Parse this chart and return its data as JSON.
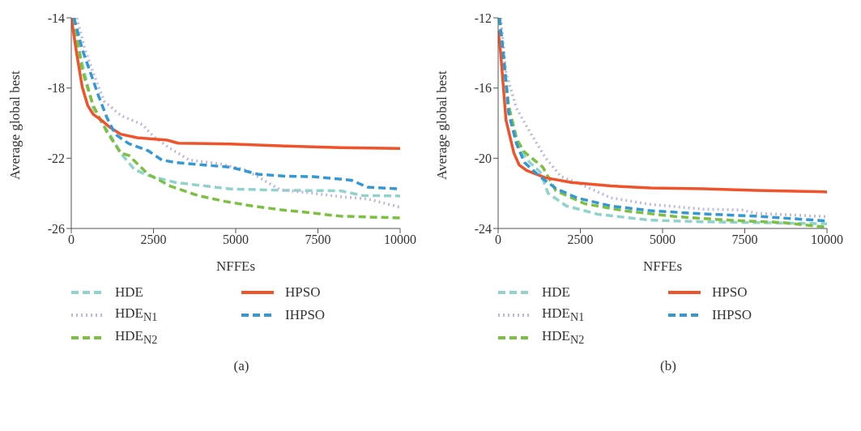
{
  "chart_data": [
    {
      "type": "line",
      "xlabel": "NFFEs",
      "ylabel": "Average global best",
      "xlim": [
        0,
        10000
      ],
      "xticks": [
        0,
        2500,
        5000,
        7500,
        10000
      ],
      "ylim": [
        -26,
        -14
      ],
      "yticks": [
        -26,
        -22,
        -18,
        -14
      ],
      "grid": false,
      "legend": "bottom",
      "marker": "none",
      "annotations": [
        "(a)"
      ],
      "series": [
        {
          "name": "HDE",
          "color": "#8fd3cc",
          "line_style": "dashed",
          "x": [
            0,
            334,
            668,
            918,
            1169,
            1503,
            1920,
            2337,
            3172,
            4841,
            6511,
            8180,
            8848,
            10000
          ],
          "values": [
            -14,
            -16.6,
            -19.15,
            -19.96,
            -20.63,
            -21.7,
            -22.64,
            -22.98,
            -23.38,
            -23.75,
            -23.83,
            -23.85,
            -24.12,
            -24.15
          ]
        },
        {
          "name": "HDE$_{N1}$",
          "color": "#c0b8dc",
          "line_style": "dotted",
          "x": [
            167,
            417,
            668,
            1002,
            1503,
            2170,
            2504,
            3005,
            3589,
            4508,
            5259,
            5676,
            6344,
            7346,
            8180,
            9015,
            10000
          ],
          "values": [
            -14,
            -15.8,
            -17.14,
            -18.75,
            -19.56,
            -20.09,
            -20.77,
            -21.44,
            -22.1,
            -22.31,
            -22.64,
            -23.05,
            -23.79,
            -23.99,
            -24.19,
            -24.32,
            -24.79
          ]
        },
        {
          "name": "HDE$_{N2}$",
          "color": "#7cc040",
          "line_style": "dashed",
          "x": [
            83,
            334,
            668,
            1085,
            1503,
            1753,
            2337,
            3005,
            3840,
            4674,
            5509,
            6344,
            7179,
            8180,
            10000
          ],
          "values": [
            -14,
            -17,
            -19,
            -20.5,
            -21.7,
            -21.84,
            -22.91,
            -23.58,
            -24.12,
            -24.46,
            -24.72,
            -24.93,
            -25.09,
            -25.3,
            -25.4
          ]
        },
        {
          "name": "HPSO",
          "color": "#f0522a",
          "line_style": "solid",
          "x": [
            0,
            167,
            334,
            501,
            668,
            918,
            1169,
            1503,
            2003,
            2922,
            3255,
            4841,
            6511,
            8180,
            10000
          ],
          "values": [
            -14,
            -16.07,
            -17.95,
            -19,
            -19.5,
            -19.83,
            -20.23,
            -20.63,
            -20.83,
            -20.97,
            -21.14,
            -21.19,
            -21.3,
            -21.4,
            -21.44
          ]
        },
        {
          "name": "IHPSO",
          "color": "#3399d6",
          "line_style": "dashed",
          "x": [
            83,
            334,
            585,
            835,
            1085,
            1336,
            1753,
            2337,
            2755,
            3172,
            4007,
            4841,
            5676,
            6511,
            7346,
            8514,
            9015,
            10000
          ],
          "values": [
            -14,
            -15.8,
            -17.14,
            -18.48,
            -19.69,
            -20.63,
            -21.17,
            -21.57,
            -22.1,
            -22.24,
            -22.38,
            -22.51,
            -22.91,
            -23.02,
            -23.05,
            -23.25,
            -23.65,
            -23.75
          ]
        }
      ]
    },
    {
      "type": "line",
      "xlabel": "NFFEs",
      "ylabel": "Average global best",
      "xlim": [
        0,
        10000
      ],
      "xticks": [
        0,
        2500,
        5000,
        7500,
        10000
      ],
      "ylim": [
        -24,
        -12
      ],
      "yticks": [
        -24,
        -20,
        -16,
        -12
      ],
      "grid": false,
      "legend": "bottom",
      "marker": "none",
      "annotations": [
        "(b)"
      ],
      "series": [
        {
          "name": "HDE",
          "color": "#8fd3cc",
          "line_style": "dashed",
          "x": [
            40,
            319,
            639,
            958,
            1278,
            1518,
            2077,
            3035,
            4633,
            6230,
            10000
          ],
          "values": [
            -12,
            -17.02,
            -19.44,
            -20.24,
            -20.78,
            -21.99,
            -22.72,
            -23.19,
            -23.53,
            -23.62,
            -23.73
          ]
        },
        {
          "name": "HDE$_{N1}$",
          "color": "#c0b8dc",
          "line_style": "dotted",
          "x": [
            80,
            240,
            559,
            879,
            1438,
            1917,
            2476,
            3435,
            4633,
            6230,
            7428,
            7827,
            10000
          ],
          "values": [
            -12,
            -15.14,
            -17.15,
            -18.23,
            -19.97,
            -21.05,
            -21.45,
            -22.26,
            -22.63,
            -22.9,
            -22.95,
            -23.13,
            -23.33
          ]
        },
        {
          "name": "HDE$_{N2}$",
          "color": "#7cc040",
          "line_style": "dashed",
          "x": [
            40,
            319,
            559,
            799,
            1358,
            1757,
            2636,
            3834,
            5431,
            7029,
            8626,
            10000
          ],
          "values": [
            -12,
            -17.02,
            -18.9,
            -19.64,
            -20.51,
            -21.85,
            -22.59,
            -22.99,
            -23.33,
            -23.53,
            -23.66,
            -23.93
          ]
        },
        {
          "name": "HPSO",
          "color": "#f0522a",
          "line_style": "solid",
          "x": [
            0,
            80,
            240,
            479,
            639,
            879,
            1438,
            2236,
            3435,
            4633,
            6230,
            7827,
            10000
          ],
          "values": [
            -12.72,
            -14.07,
            -17.83,
            -19.7,
            -20.38,
            -20.71,
            -21.11,
            -21.38,
            -21.58,
            -21.69,
            -21.74,
            -21.83,
            -21.92
          ]
        },
        {
          "name": "IHPSO",
          "color": "#3399d6",
          "line_style": "dashed",
          "x": [
            40,
            160,
            319,
            559,
            799,
            1278,
            1757,
            2396,
            3435,
            4633,
            6230,
            7827,
            10000
          ],
          "values": [
            -12,
            -14.07,
            -17.42,
            -19.17,
            -20.24,
            -21.05,
            -21.72,
            -22.26,
            -22.72,
            -22.99,
            -23.17,
            -23.3,
            -23.57
          ]
        }
      ]
    }
  ]
}
